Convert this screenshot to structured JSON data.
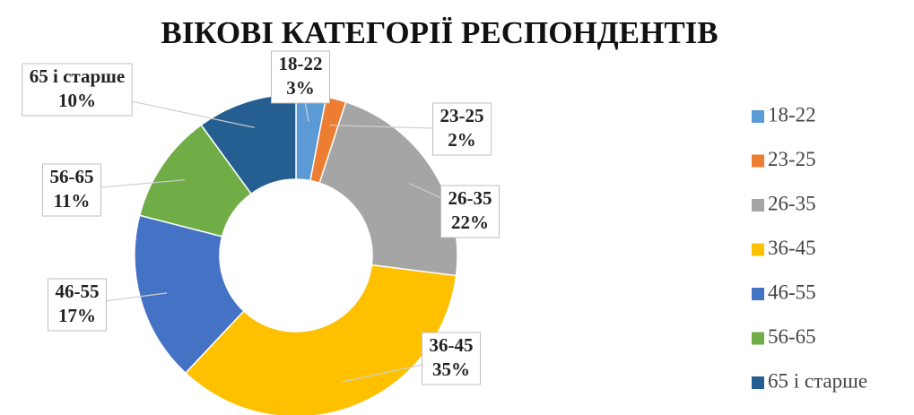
{
  "chart_data": {
    "type": "donut",
    "title": "ВІКОВІ КАТЕГОРІЇ РЕСПОНДЕНТІВ",
    "categories": [
      "18-22",
      "23-25",
      "26-35",
      "36-45",
      "46-55",
      "56-65",
      "65 і старше"
    ],
    "values": [
      3,
      2,
      22,
      35,
      17,
      11,
      10
    ],
    "value_labels": [
      "3%",
      "2%",
      "22%",
      "35%",
      "17%",
      "11%",
      "10%"
    ],
    "colors": [
      "#5b9bd5",
      "#ed7d31",
      "#a5a5a5",
      "#ffc000",
      "#4472c4",
      "#70ad47",
      "#255e91"
    ],
    "legend": "right"
  }
}
